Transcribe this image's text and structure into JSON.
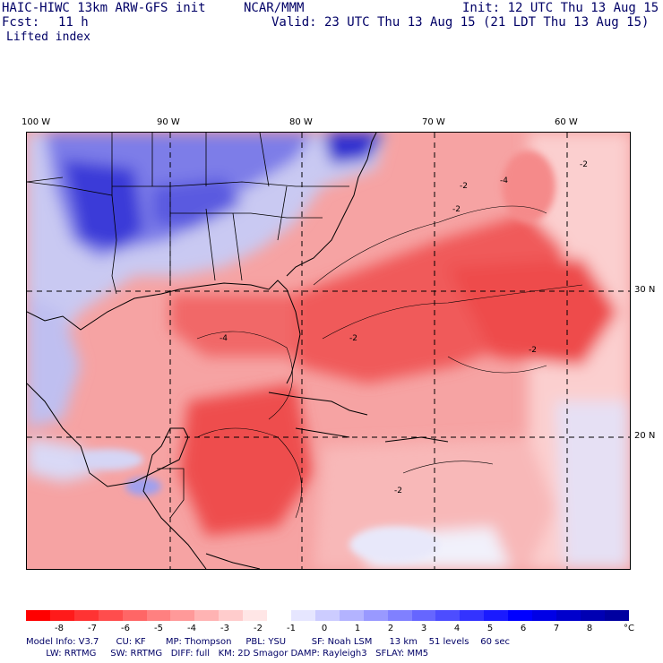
{
  "header": {
    "model_title": "HAIC-HIWC 13km ARW-GFS init",
    "org": "NCAR/MMM",
    "init": "Init: 12 UTC Thu 13 Aug 15",
    "fcst_label": "Fcst:",
    "fcst_value": "11 h",
    "valid": "Valid: 23 UTC Thu 13 Aug 15 (21 LDT Thu 13 Aug 15)",
    "field": "Lifted index"
  },
  "map": {
    "lon_labels": [
      "100 W",
      "90 W",
      "80 W",
      "70 W",
      "60 W"
    ],
    "lat_labels": [
      "30 N",
      "20 N"
    ],
    "contour_labels": [
      "-2",
      "-4",
      "-2",
      "-2",
      "-2",
      "-4",
      "-2",
      "-2"
    ]
  },
  "colorbar": {
    "unit": "°C",
    "ticks": [
      "-8",
      "-7",
      "-6",
      "-5",
      "-4",
      "-3",
      "-2",
      "-1",
      "0",
      "1",
      "2",
      "3",
      "4",
      "5",
      "6",
      "7",
      "8"
    ],
    "colors": [
      "#ff0000",
      "#ff1a1a",
      "#ff3333",
      "#ff4d4d",
      "#ff6666",
      "#ff8080",
      "#ff9999",
      "#ffb3b3",
      "#ffcccc",
      "#ffe6e6",
      "#ffffff",
      "#e6e6ff",
      "#ccccff",
      "#b3b3ff",
      "#9999ff",
      "#8080ff",
      "#6666ff",
      "#4d4dff",
      "#3333ff",
      "#1a1aff",
      "#0000ff",
      "#0000e6",
      "#0000cc",
      "#0000b3",
      "#0000a0"
    ]
  },
  "model_info": {
    "line1": "Model Info: V3.7      CU: KF       MP: Thompson     PBL: YSU         SF: Noah LSM      13 km    51 levels    60 sec",
    "line2": "       LW: RRTMG     SW: RRTMG   DIFF: full   KM: 2D Smagor DAMP: Rayleigh3   SFLAY: MM5"
  }
}
